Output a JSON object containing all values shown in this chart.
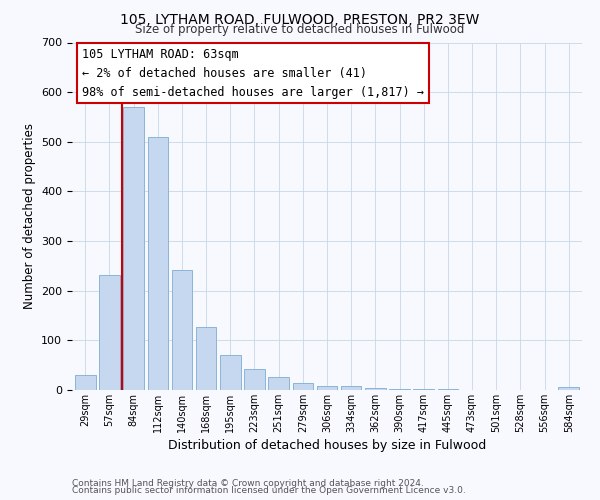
{
  "title1": "105, LYTHAM ROAD, FULWOOD, PRESTON, PR2 3EW",
  "title2": "Size of property relative to detached houses in Fulwood",
  "xlabel": "Distribution of detached houses by size in Fulwood",
  "ylabel": "Number of detached properties",
  "bar_labels": [
    "29sqm",
    "57sqm",
    "84sqm",
    "112sqm",
    "140sqm",
    "168sqm",
    "195sqm",
    "223sqm",
    "251sqm",
    "279sqm",
    "306sqm",
    "334sqm",
    "362sqm",
    "390sqm",
    "417sqm",
    "445sqm",
    "473sqm",
    "501sqm",
    "528sqm",
    "556sqm",
    "584sqm"
  ],
  "bar_values": [
    30,
    232,
    570,
    510,
    242,
    127,
    70,
    43,
    27,
    14,
    9,
    9,
    4,
    3,
    3,
    2,
    0,
    0,
    0,
    0,
    6
  ],
  "bar_color": "#c5d8f0",
  "bar_edge_color": "#8ab4d8",
  "vline_x": 1.5,
  "vline_color": "#cc0000",
  "annotation_lines": [
    "105 LYTHAM ROAD: 63sqm",
    "← 2% of detached houses are smaller (41)",
    "98% of semi-detached houses are larger (1,817) →"
  ],
  "annotation_box_color": "#ffffff",
  "annotation_box_edge": "#cc0000",
  "ylim": [
    0,
    700
  ],
  "yticks": [
    0,
    100,
    200,
    300,
    400,
    500,
    600,
    700
  ],
  "footer1": "Contains HM Land Registry data © Crown copyright and database right 2024.",
  "footer2": "Contains public sector information licensed under the Open Government Licence v3.0.",
  "bg_color": "#f8f8ff"
}
